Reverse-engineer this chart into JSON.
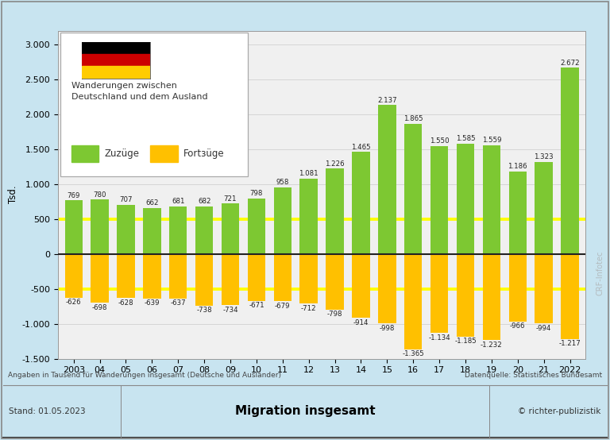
{
  "years": [
    "2003",
    "04",
    "05",
    "06",
    "07",
    "08",
    "09",
    "10",
    "11",
    "12",
    "13",
    "14",
    "15",
    "16",
    "17",
    "18",
    "19",
    "20",
    "21",
    "2022"
  ],
  "zuzuege": [
    769,
    780,
    707,
    662,
    681,
    682,
    721,
    798,
    958,
    1081,
    1226,
    1465,
    2137,
    1865,
    1550,
    1585,
    1559,
    1186,
    1323,
    2672
  ],
  "fortzuege": [
    -626,
    -698,
    -628,
    -639,
    -637,
    -738,
    -734,
    -671,
    -679,
    -712,
    -798,
    -914,
    -998,
    -1365,
    -1134,
    -1185,
    -1232,
    -966,
    -994,
    -1217
  ],
  "bar_color_green": "#7DC832",
  "bar_color_yellow": "#FFC000",
  "background_outer": "#C8E4F0",
  "background_inner": "#F0F0F0",
  "grid_color_yellow": "#FFFF00",
  "grid_color_gray": "#cccccc",
  "zero_line_color": "#222222",
  "ylim_min": -1500,
  "ylim_max": 3200,
  "yticks": [
    -1500,
    -1000,
    -500,
    0,
    500,
    1000,
    1500,
    2000,
    2500,
    3000
  ],
  "ytick_labels": [
    "-1.500",
    "-1.000",
    "-500",
    "0",
    "500",
    "1.000",
    "1.500",
    "2.000",
    "2.500",
    "3.000"
  ],
  "ylabel": "Tsd.",
  "legend_title_line1": "Wanderungen zwischen",
  "legend_title_line2": "Deutschland und dem Ausland",
  "legend_zuzuege": "Zuzüge",
  "legend_fortzuege": "Fortзüge",
  "footnote_left": "Angaben in Tausend für Wanderungen insgesamt (Deutsche und Ausländer)",
  "footnote_right": "Datenquelle: Statistisches Bundesamt",
  "footer_left": "Stand: 01.05.2023",
  "footer_center": "Migration insgesamt",
  "footer_right": "© richter-publizistik",
  "watermark": "CRF-Infotec",
  "flag_black": "#000000",
  "flag_red": "#CC0000",
  "flag_gold": "#FFCC00"
}
